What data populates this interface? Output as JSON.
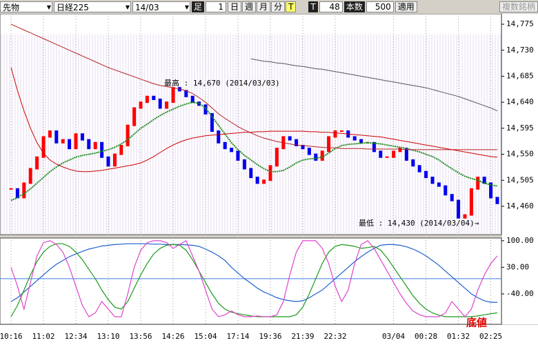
{
  "toolbar": {
    "market": "先物",
    "index": "日経225",
    "contract": "14/03",
    "bar_label": "足",
    "bar_size": "1",
    "periods": [
      "日",
      "週",
      "月",
      "分",
      "T"
    ],
    "tick_label": "T",
    "tick_count": "48",
    "count_label": "本数",
    "count": "500",
    "apply": "適用",
    "multi": "複数銘柄"
  },
  "chart_data": [
    {
      "type": "candle-line",
      "categories": [
        "10:16",
        null,
        null,
        null,
        null,
        "11:02",
        null,
        null,
        null,
        null,
        "12:34",
        null,
        null,
        null,
        null,
        "13:10",
        null,
        null,
        null,
        null,
        "13:56",
        null,
        null,
        null,
        null,
        "14:26",
        null,
        null,
        null,
        null,
        "15:04",
        null,
        null,
        null,
        null,
        "17:14",
        null,
        null,
        null,
        null,
        "19:36",
        null,
        null,
        null,
        null,
        "21:39",
        null,
        null,
        null,
        null,
        "22:32",
        null,
        null,
        null,
        null,
        null,
        null,
        null,
        null,
        "03/04",
        null,
        null,
        null,
        null,
        "00:28",
        null,
        null,
        null,
        null,
        "01:32",
        null,
        null,
        null,
        null,
        "02:25",
        null
      ],
      "values": [
        14490,
        14475,
        14500,
        14525,
        14545,
        14580,
        14590,
        14570,
        14575,
        14560,
        14585,
        14575,
        14560,
        14570,
        14545,
        14530,
        14550,
        14565,
        14600,
        14630,
        14640,
        14650,
        14645,
        14630,
        14640,
        14665,
        14660,
        14650,
        14640,
        14635,
        14620,
        14590,
        14570,
        14560,
        14555,
        14540,
        14525,
        14510,
        14500,
        14505,
        14530,
        14560,
        14580,
        14575,
        14565,
        14560,
        14550,
        14540,
        14555,
        14580,
        14590,
        14590,
        14580,
        14575,
        14570,
        14570,
        14555,
        14545,
        14545,
        14555,
        14560,
        14540,
        14530,
        14520,
        14510,
        14500,
        14495,
        14480,
        14470,
        14440,
        14445,
        14490,
        14510,
        14500,
        14475,
        14465
      ],
      "up_color": "#ff0000",
      "down_color": "#0000ee",
      "series": [
        {
          "color": "#228b22",
          "values": [
            14470,
            14475,
            14482,
            14490,
            14500,
            14510,
            14520,
            14528,
            14535,
            14540,
            14545,
            14548,
            14550,
            14552,
            14555,
            14558,
            14562,
            14568,
            14575,
            14585,
            14595,
            14602,
            14610,
            14617,
            14623,
            14628,
            14633,
            14637,
            14640,
            14638,
            14630,
            14615,
            14600,
            14585,
            14570,
            14558,
            14548,
            14540,
            14532,
            14525,
            14520,
            14520,
            14522,
            14528,
            14535,
            14540,
            14542,
            14543,
            14545,
            14552,
            14560,
            14565,
            14567,
            14568,
            14569,
            14570,
            14569,
            14568,
            14566,
            14564,
            14562,
            14560,
            14557,
            14554,
            14550,
            14546,
            14540,
            14532,
            14525,
            14518,
            14512,
            14508,
            14505,
            14500,
            14497,
            14495
          ]
        },
        {
          "color": "#b22222",
          "values": [
            14775,
            14770,
            14765,
            14760,
            14755,
            14750,
            14745,
            14740,
            14735,
            14730,
            14725,
            14720,
            14715,
            14710,
            14705,
            14700,
            14696,
            14692,
            14688,
            14684,
            14680,
            14676,
            14672,
            14669,
            14667,
            14665,
            14663,
            14660,
            14655,
            14648,
            14640,
            14630,
            14620,
            14612,
            14605,
            14598,
            14592,
            14587,
            14582,
            14578,
            14575,
            14572,
            14570,
            14568,
            14566,
            14565,
            14564,
            14563,
            14562,
            14561,
            14561,
            14560,
            14560,
            14560,
            14560,
            14559,
            14559,
            14559,
            14559,
            14559,
            14559,
            14558,
            14558,
            14558,
            14558,
            14558,
            14558,
            14558,
            14558,
            14558,
            14558,
            14558,
            14558,
            14558,
            14558,
            14558
          ]
        },
        {
          "color": "#cc0000",
          "values": [
            14700,
            14660,
            14625,
            14595,
            14570,
            14552,
            14540,
            14533,
            14528,
            14524,
            14521,
            14520,
            14520,
            14521,
            14522,
            14524,
            14526,
            14528,
            14530,
            14532,
            14535,
            14540,
            14546,
            14553,
            14560,
            14566,
            14571,
            14575,
            14578,
            14580,
            14582,
            14583,
            14584,
            14585,
            14586,
            14587,
            14588,
            14588,
            14589,
            14589,
            14590,
            14590,
            14590,
            14590,
            14590,
            14590,
            14589,
            14589,
            14588,
            14588,
            14587,
            14586,
            14585,
            14584,
            14583,
            14582,
            14581,
            14580,
            14578,
            14576,
            14574,
            14572,
            14570,
            14568,
            14566,
            14564,
            14562,
            14560,
            14558,
            14556,
            14554,
            14552,
            14550,
            14548,
            14546,
            14545
          ]
        },
        {
          "color": "#555555",
          "values": [
            null,
            null,
            null,
            null,
            null,
            null,
            null,
            null,
            null,
            null,
            null,
            null,
            null,
            null,
            null,
            null,
            null,
            null,
            null,
            null,
            null,
            null,
            null,
            null,
            null,
            null,
            null,
            null,
            null,
            null,
            null,
            null,
            null,
            null,
            null,
            null,
            null,
            14715,
            14713,
            14711,
            14710,
            14708,
            14707,
            14705,
            14703,
            14702,
            14700,
            14698,
            14697,
            14695,
            14693,
            14691,
            14689,
            14687,
            14685,
            14683,
            14681,
            14679,
            14677,
            14675,
            14673,
            14671,
            14669,
            14667,
            14665,
            14662,
            14659,
            14656,
            14653,
            14650,
            14646,
            14642,
            14638,
            14634,
            14630,
            14625
          ]
        }
      ],
      "ylim": [
        14411,
        14793
      ],
      "yticks": [
        {
          "value": 14775,
          "label": "14,775"
        },
        {
          "value": 14730,
          "label": "14,730"
        },
        {
          "value": 14685,
          "label": "14,685"
        },
        {
          "value": 14640,
          "label": "14,640"
        },
        {
          "value": 14595,
          "label": "14,595"
        },
        {
          "value": 14550,
          "label": "14,550"
        },
        {
          "value": 14505,
          "label": "14,505"
        },
        {
          "value": 14460,
          "label": "14,460"
        }
      ],
      "annotations": [
        "最高 : 14,670 (2014/03/03)",
        "最低 : 14,430 (2014/03/04)→"
      ]
    },
    {
      "type": "line",
      "series": [
        {
          "color": "#1f5fd0",
          "values": [
            -60,
            -50,
            -35,
            -20,
            -5,
            10,
            25,
            38,
            48,
            58,
            65,
            72,
            78,
            82,
            86,
            88,
            90,
            91,
            92,
            92,
            92,
            92,
            91,
            91,
            90,
            90,
            90,
            89,
            88,
            85,
            78,
            70,
            60,
            48,
            30,
            15,
            0,
            -12,
            -25,
            -35,
            -42,
            -50,
            -55,
            -58,
            -60,
            -58,
            -50,
            -40,
            -30,
            -15,
            0,
            15,
            30,
            45,
            58,
            70,
            80,
            88,
            90,
            90,
            88,
            84,
            78,
            70,
            60,
            48,
            35,
            20,
            5,
            -10,
            -25,
            -40,
            -50,
            -58,
            -62,
            -62
          ]
        },
        {
          "color": "#1a9a1a",
          "values": [
            -100,
            -70,
            -30,
            10,
            45,
            70,
            85,
            92,
            92,
            85,
            70,
            50,
            25,
            0,
            -30,
            -55,
            -75,
            -80,
            -60,
            -25,
            10,
            40,
            65,
            80,
            88,
            90,
            88,
            75,
            50,
            20,
            -10,
            -40,
            -65,
            -80,
            -88,
            -92,
            -95,
            -98,
            -100,
            -100,
            -100,
            -100,
            -100,
            -100,
            -95,
            -75,
            -40,
            0,
            40,
            70,
            85,
            90,
            88,
            85,
            80,
            82,
            85,
            75,
            55,
            30,
            5,
            -20,
            -45,
            -65,
            -80,
            -90,
            -96,
            -100,
            -100,
            -100,
            -100,
            -100,
            -98,
            -95,
            -92,
            -90
          ]
        },
        {
          "color": "#dd44cc",
          "values": [
            30,
            -20,
            -80,
            -10,
            60,
            95,
            100,
            90,
            70,
            30,
            -20,
            -70,
            -100,
            -90,
            -60,
            -80,
            -100,
            -100,
            -40,
            30,
            75,
            95,
            100,
            100,
            95,
            80,
            90,
            100,
            60,
            20,
            -30,
            -80,
            -100,
            -95,
            -85,
            -95,
            -100,
            -100,
            -98,
            -100,
            -100,
            -95,
            -60,
            10,
            70,
            100,
            100,
            100,
            80,
            40,
            -20,
            -60,
            -30,
            40,
            90,
            100,
            80,
            50,
            20,
            -10,
            -40,
            -65,
            -85,
            -95,
            -100,
            -100,
            -100,
            -90,
            -60,
            -80,
            -100,
            -80,
            -30,
            10,
            40,
            60
          ]
        }
      ],
      "ylim": [
        -120,
        107
      ],
      "yticks": [
        {
          "value": 100,
          "label": "100.00"
        },
        {
          "value": 30,
          "label": "30.00"
        },
        {
          "value": -40,
          "label": "-40.00"
        }
      ],
      "hline": 0,
      "annotations": [
        "底値"
      ]
    }
  ]
}
